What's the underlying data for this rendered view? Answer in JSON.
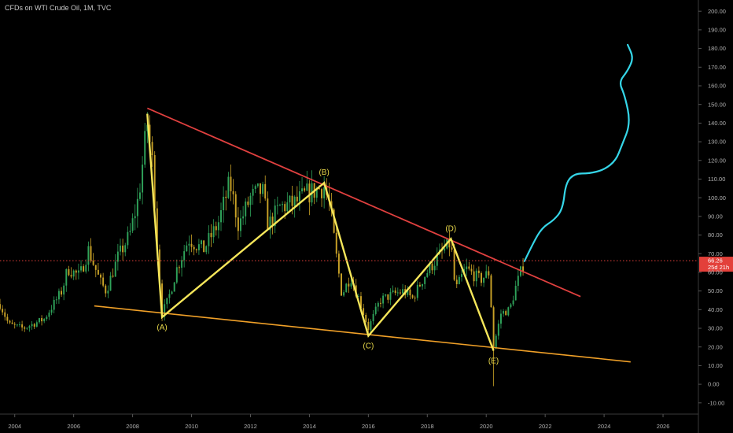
{
  "title": "CFDs on WTI Crude Oil, 1M, TVC",
  "chart_data": {
    "type": "candlestick",
    "xlim": [
      2003.5,
      2027.2
    ],
    "ylim": [
      -16,
      206
    ],
    "x_ticks": [
      2004,
      2006,
      2008,
      2010,
      2012,
      2014,
      2016,
      2018,
      2020,
      2022,
      2024,
      2026
    ],
    "y_ticks": [
      -10,
      0,
      10,
      20,
      30,
      40,
      50,
      60,
      70,
      80,
      90,
      100,
      110,
      120,
      130,
      140,
      150,
      160,
      170,
      180,
      190,
      200
    ],
    "price_anchors": [
      [
        2003.5,
        43
      ],
      [
        2003.8,
        32
      ],
      [
        2004.3,
        30
      ],
      [
        2005.0,
        35
      ],
      [
        2005.6,
        50
      ],
      [
        2005.8,
        62
      ],
      [
        2006.2,
        58
      ],
      [
        2006.5,
        72
      ],
      [
        2006.9,
        55
      ],
      [
        2007.1,
        50
      ],
      [
        2007.5,
        68
      ],
      [
        2007.9,
        80
      ],
      [
        2008.2,
        100
      ],
      [
        2008.5,
        140
      ],
      [
        2008.7,
        115
      ],
      [
        2008.85,
        70
      ],
      [
        2009.0,
        38
      ],
      [
        2009.2,
        45
      ],
      [
        2009.5,
        62
      ],
      [
        2009.9,
        78
      ],
      [
        2010.4,
        72
      ],
      [
        2010.9,
        86
      ],
      [
        2011.3,
        108
      ],
      [
        2011.6,
        85
      ],
      [
        2012.0,
        100
      ],
      [
        2012.4,
        104
      ],
      [
        2012.6,
        85
      ],
      [
        2013.0,
        95
      ],
      [
        2013.5,
        97
      ],
      [
        2013.9,
        102
      ],
      [
        2014.5,
        106
      ],
      [
        2014.7,
        95
      ],
      [
        2014.9,
        70
      ],
      [
        2015.1,
        48
      ],
      [
        2015.4,
        58
      ],
      [
        2015.7,
        45
      ],
      [
        2016.0,
        30
      ],
      [
        2016.4,
        45
      ],
      [
        2016.8,
        48
      ],
      [
        2017.2,
        50
      ],
      [
        2017.5,
        46
      ],
      [
        2017.9,
        58
      ],
      [
        2018.3,
        67
      ],
      [
        2018.8,
        76
      ],
      [
        2018.95,
        50
      ],
      [
        2019.3,
        62
      ],
      [
        2019.8,
        56
      ],
      [
        2020.1,
        60
      ],
      [
        2020.25,
        20
      ],
      [
        2020.5,
        38
      ],
      [
        2020.8,
        40
      ],
      [
        2021.0,
        52
      ],
      [
        2021.3,
        66.26
      ]
    ],
    "resistance_line": {
      "from": [
        2008.5,
        148
      ],
      "to": [
        2023.2,
        47
      ]
    },
    "support_line": {
      "from": [
        2006.7,
        42
      ],
      "to": [
        2024.9,
        12
      ]
    },
    "wave_pattern": {
      "points": [
        [
          2008.5,
          145
        ],
        [
          2009.0,
          36
        ],
        [
          2014.5,
          108
        ],
        [
          2016.0,
          26
        ],
        [
          2018.8,
          78
        ],
        [
          2020.25,
          18
        ]
      ],
      "labels": [
        "(A)",
        "(B)",
        "(C)",
        "(D)",
        "(E)"
      ]
    },
    "projection": {
      "points": [
        [
          2021.3,
          66
        ],
        [
          2021.6,
          76
        ],
        [
          2021.9,
          84
        ],
        [
          2022.3,
          88
        ],
        [
          2022.6,
          94
        ],
        [
          2022.7,
          108
        ],
        [
          2023.0,
          113
        ],
        [
          2023.5,
          113
        ],
        [
          2024.0,
          115
        ],
        [
          2024.4,
          120
        ],
        [
          2024.6,
          128
        ],
        [
          2024.9,
          140
        ],
        [
          2024.7,
          155
        ],
        [
          2024.5,
          162
        ],
        [
          2024.8,
          168
        ],
        [
          2025.0,
          175
        ],
        [
          2024.8,
          182
        ]
      ]
    },
    "current_price": {
      "value": 66.26,
      "value_label": "66.26",
      "countdown_label": "25d 21h"
    },
    "colors": {
      "up": "#2fa35a",
      "down": "#c9a227",
      "resistance": "#e0403f",
      "support": "#f0a028",
      "wave": "#f5e65a",
      "projection": "#35d6e8",
      "price_tag": "#e3403a"
    }
  }
}
